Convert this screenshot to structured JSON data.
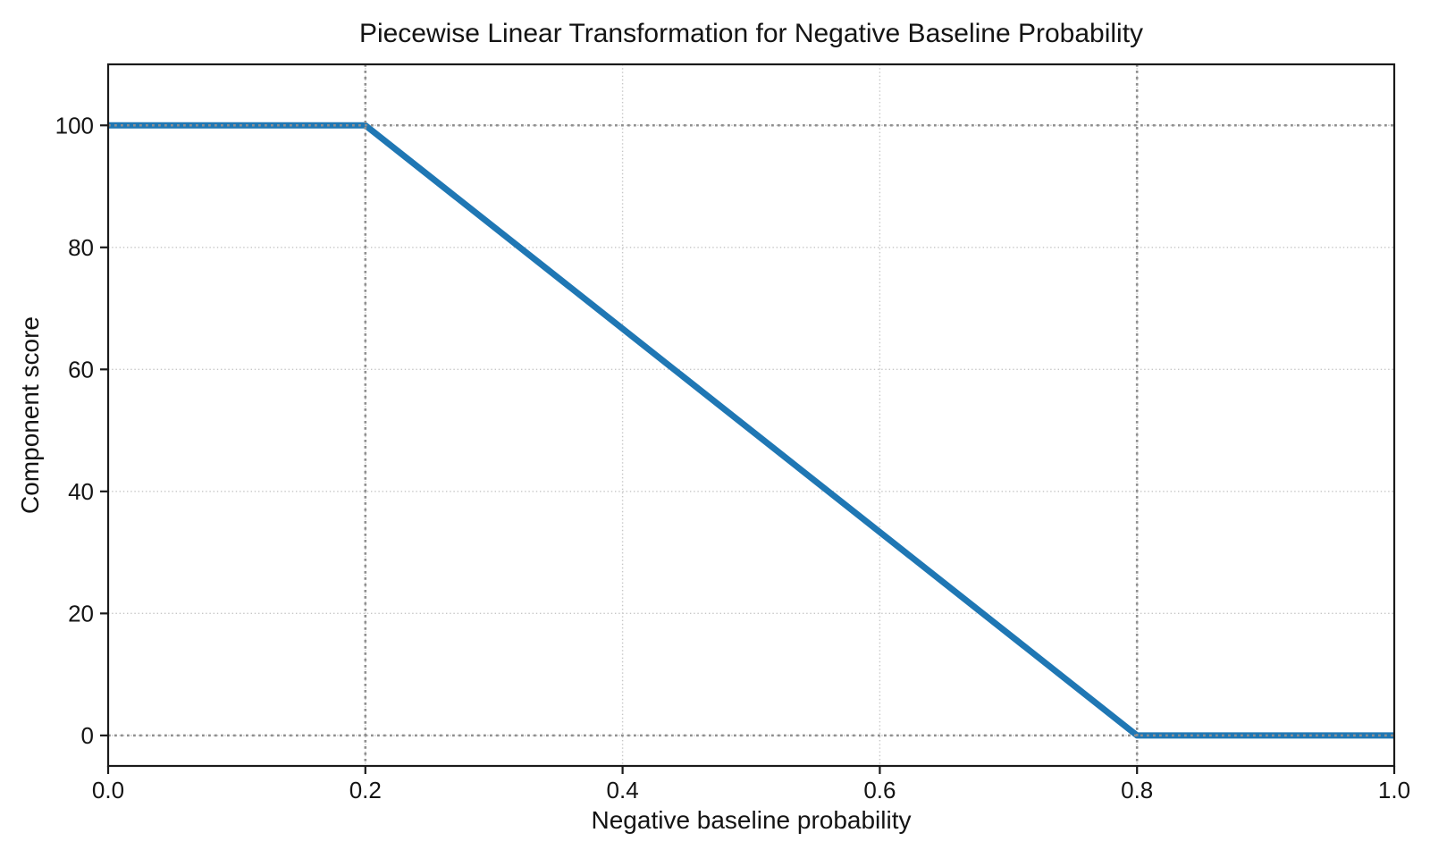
{
  "figure": {
    "background_color": "#ffffff"
  },
  "chart_data": {
    "type": "line",
    "title": "Piecewise Linear Transformation for Negative Baseline Probability",
    "xlabel": "Negative baseline probability",
    "ylabel": "Component score",
    "xlim": [
      0.0,
      1.0
    ],
    "ylim": [
      -5,
      110
    ],
    "x_ticks": [
      0.0,
      0.2,
      0.4,
      0.6,
      0.8,
      1.0
    ],
    "x_tick_labels": [
      "0.0",
      "0.2",
      "0.4",
      "0.6",
      "0.8",
      "1.0"
    ],
    "y_ticks": [
      0,
      20,
      40,
      60,
      80,
      100
    ],
    "y_tick_labels": [
      "0",
      "20",
      "40",
      "60",
      "80",
      "100"
    ],
    "grid": {
      "show": true,
      "style": "dotted",
      "color": "#c6c6c6"
    },
    "reference_lines": {
      "style": "dotted",
      "color": "#8f8f8f",
      "vertical_x": [
        0.2,
        0.8
      ],
      "horizontal_y": [
        0,
        100
      ]
    },
    "series": [
      {
        "name": "piecewise-linear-transform",
        "color": "#1f77b4",
        "linewidth": 7,
        "points": [
          [
            0.0,
            100
          ],
          [
            0.2,
            100
          ],
          [
            0.8,
            0
          ],
          [
            1.0,
            0
          ]
        ]
      }
    ],
    "legend": null,
    "axis_color": "#1a1a1a",
    "text_color": "#141414"
  }
}
